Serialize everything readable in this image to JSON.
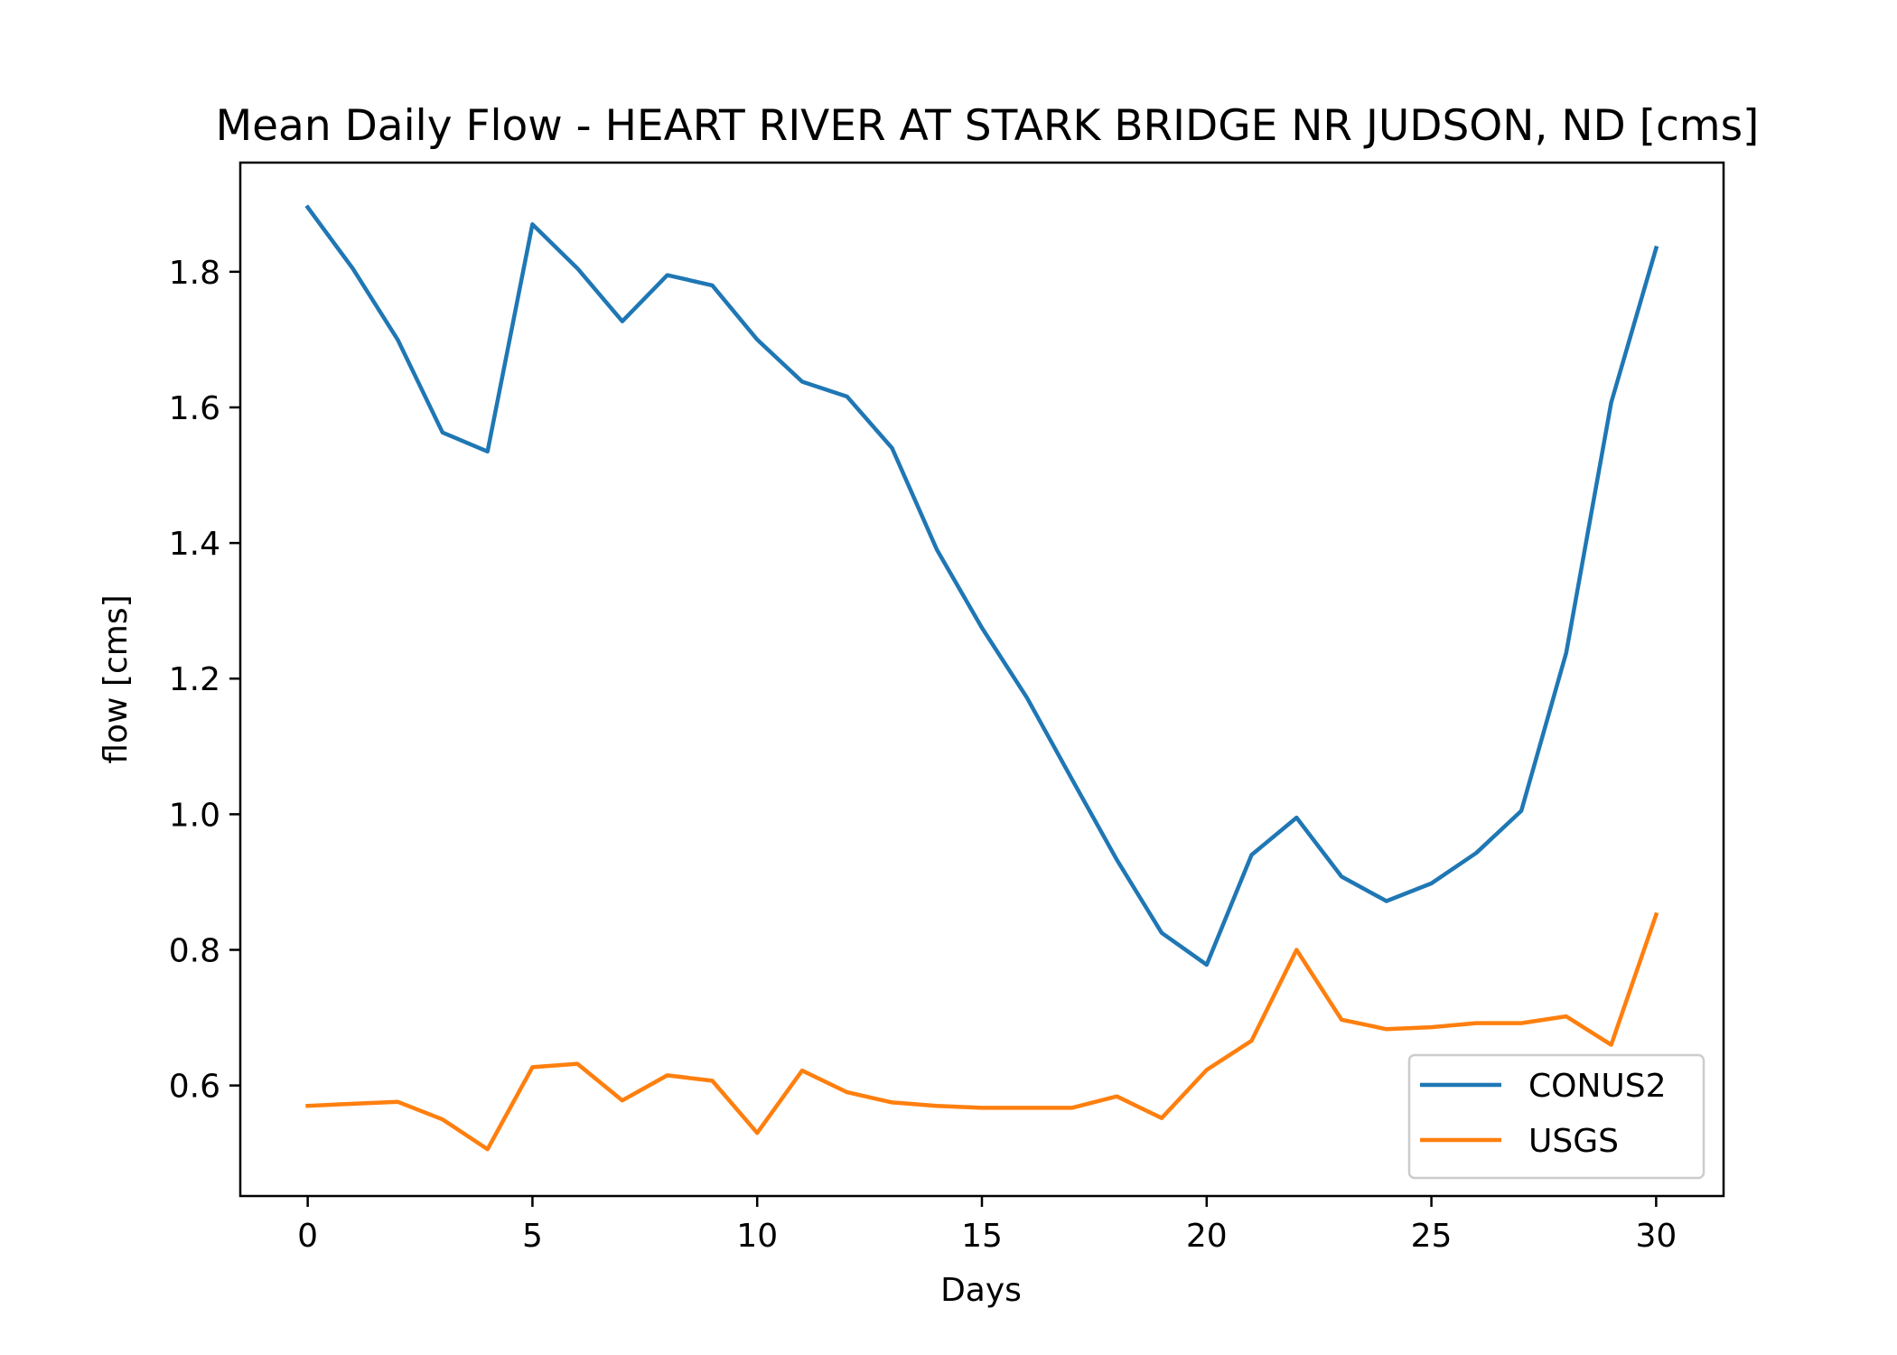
{
  "chart_data": {
    "type": "line",
    "title": "Mean Daily Flow - HEART RIVER AT STARK BRIDGE NR JUDSON, ND [cms]",
    "xlabel": "Days",
    "ylabel": "flow [cms]",
    "xlim": [
      -1.5,
      31.5
    ],
    "ylim": [
      0.437,
      1.961
    ],
    "xticks": [
      0,
      5,
      10,
      15,
      20,
      25,
      30
    ],
    "xtick_labels": [
      "0",
      "5",
      "10",
      "15",
      "20",
      "25",
      "30"
    ],
    "yticks": [
      0.6,
      0.8,
      1.0,
      1.2,
      1.4,
      1.6,
      1.8
    ],
    "ytick_labels": [
      "0.6",
      "0.8",
      "1.0",
      "1.2",
      "1.4",
      "1.6",
      "1.8"
    ],
    "grid": false,
    "legend_position": "lower right",
    "x": [
      0,
      1,
      2,
      3,
      4,
      5,
      6,
      7,
      8,
      9,
      10,
      11,
      12,
      13,
      14,
      15,
      16,
      17,
      18,
      19,
      20,
      21,
      22,
      23,
      24,
      25,
      26,
      27,
      28,
      29,
      30
    ],
    "series": [
      {
        "name": "CONUS2",
        "color": "#1f77b4",
        "values": [
          1.895,
          1.805,
          1.7,
          1.563,
          1.535,
          1.87,
          1.805,
          1.727,
          1.795,
          1.78,
          1.7,
          1.638,
          1.616,
          1.54,
          1.39,
          1.275,
          1.172,
          1.052,
          0.933,
          0.825,
          0.778,
          0.94,
          0.995,
          0.908,
          0.872,
          0.898,
          0.943,
          1.005,
          1.238,
          1.607,
          1.835
        ]
      },
      {
        "name": "USGS",
        "color": "#ff7f0e",
        "values": [
          0.57,
          0.573,
          0.576,
          0.55,
          0.506,
          0.627,
          0.632,
          0.578,
          0.615,
          0.607,
          0.53,
          0.622,
          0.59,
          0.575,
          0.57,
          0.567,
          0.567,
          0.567,
          0.584,
          0.552,
          0.623,
          0.666,
          0.8,
          0.697,
          0.683,
          0.686,
          0.692,
          0.692,
          0.702,
          0.66,
          0.852
        ]
      }
    ]
  }
}
